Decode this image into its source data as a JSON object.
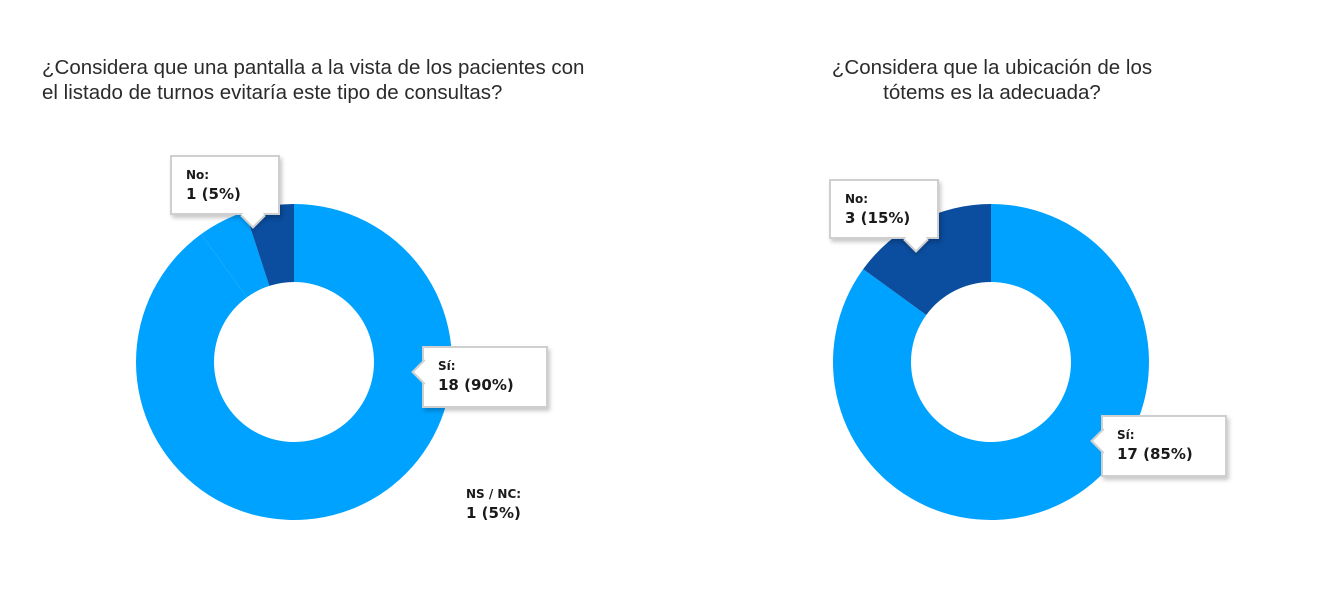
{
  "chart_data": [
    {
      "type": "pie",
      "title": "¿Considera que una pantalla a la vista de los pacientes con el listado de turnos evitaría este tipo de consultas?",
      "categories": [
        "Sí",
        "No",
        "NS / NC"
      ],
      "values": [
        18,
        1,
        1
      ],
      "percent": [
        90,
        5,
        5
      ],
      "colors": [
        "#00a2ff",
        "#0b4d9e",
        "#00a2ff"
      ],
      "labels": [
        {
          "name": "Sí:",
          "value": "18 (90%)"
        },
        {
          "name": "No:",
          "value": "1 (5%)"
        },
        {
          "name": "NS / NC:",
          "value": "1 (5%)"
        }
      ]
    },
    {
      "type": "pie",
      "title": "¿Considera que la ubicación de los tótems es la adecuada?",
      "categories": [
        "Sí",
        "No"
      ],
      "values": [
        17,
        3
      ],
      "percent": [
        85,
        15
      ],
      "colors": [
        "#00a2ff",
        "#0b4d9e"
      ],
      "labels": [
        {
          "name": "Sí:",
          "value": "17 (85%)"
        },
        {
          "name": "No:",
          "value": "3 (15%)"
        }
      ]
    }
  ]
}
